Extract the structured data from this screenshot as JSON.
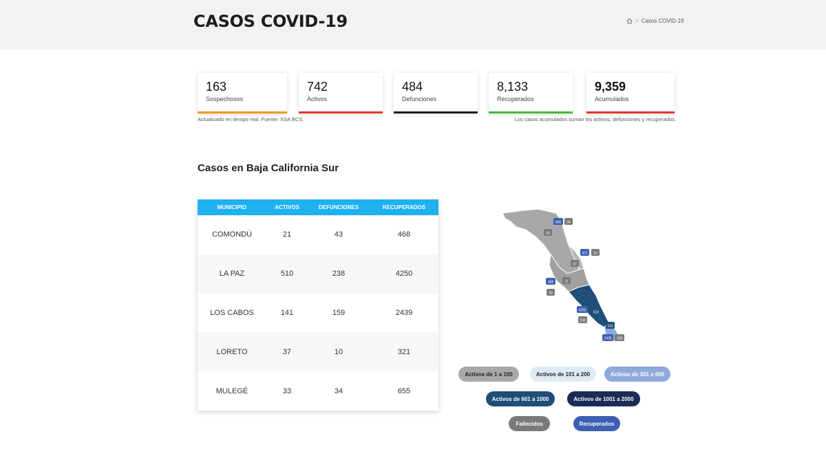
{
  "header": {
    "title": "CASOS COVID-19",
    "breadcrumb_current": "Casos COVID-19",
    "breadcrumb_separator": ">"
  },
  "stats": [
    {
      "value": "163",
      "label": "Sospechosos",
      "color": "#f39a1e"
    },
    {
      "value": "742",
      "label": "Activos",
      "color": "#e8352a"
    },
    {
      "value": "484",
      "label": "Defunciones",
      "color": "#1c1c1c"
    },
    {
      "value": "8,133",
      "label": "Recuperados",
      "color": "#3fbf3a"
    },
    {
      "value": "9,359",
      "label": "Acumulados",
      "color": "#e8352a"
    }
  ],
  "notes": {
    "left": "Actualizado en tiempo real. Fuente: SSA BCS.",
    "right": "Los casos acumulados suman los activos, defunciones y recuperados."
  },
  "section_title": "Casos en Baja California Sur",
  "table": {
    "header_color": "#1eb1f0",
    "columns": [
      "MUNICIPIO",
      "ACTIVOS",
      "DEFUNCIONES",
      "RECUPERADOS"
    ],
    "rows": [
      [
        "COMONDÚ",
        "21",
        "43",
        "468"
      ],
      [
        "LA PAZ",
        "510",
        "238",
        "4250"
      ],
      [
        "LOS CABOS",
        "141",
        "159",
        "2439"
      ],
      [
        "LORETO",
        "37",
        "10",
        "321"
      ],
      [
        "MULEGÉ",
        "33",
        "34",
        "655"
      ]
    ]
  },
  "map": {
    "labels": [
      "655",
      "34",
      "33",
      "321",
      "10",
      "37",
      "468",
      "21",
      "43",
      "4250",
      "510",
      "238",
      "141",
      "2439",
      "159"
    ]
  },
  "legend": [
    {
      "label": "Activos de 1 a 100",
      "bg": "#a9a9a9",
      "fg": "#222222"
    },
    {
      "label": "Activos de 101 a 200",
      "bg": "#deebf7",
      "fg": "#222222"
    },
    {
      "label": "Activos de 301 a 600",
      "bg": "#8ea9db",
      "fg": "#ffffff"
    },
    {
      "label": "Activos de 601 a 1000",
      "bg": "#1f4e79",
      "fg": "#ffffff"
    },
    {
      "label": "Activos de 1001 a 2000",
      "bg": "#1a2c56",
      "fg": "#ffffff"
    },
    {
      "label": "Fallecidos",
      "bg": "#7a7a7a",
      "fg": "#ffffff"
    },
    {
      "label": "Recuperados",
      "bg": "#3c5fb1",
      "fg": "#ffffff"
    }
  ]
}
